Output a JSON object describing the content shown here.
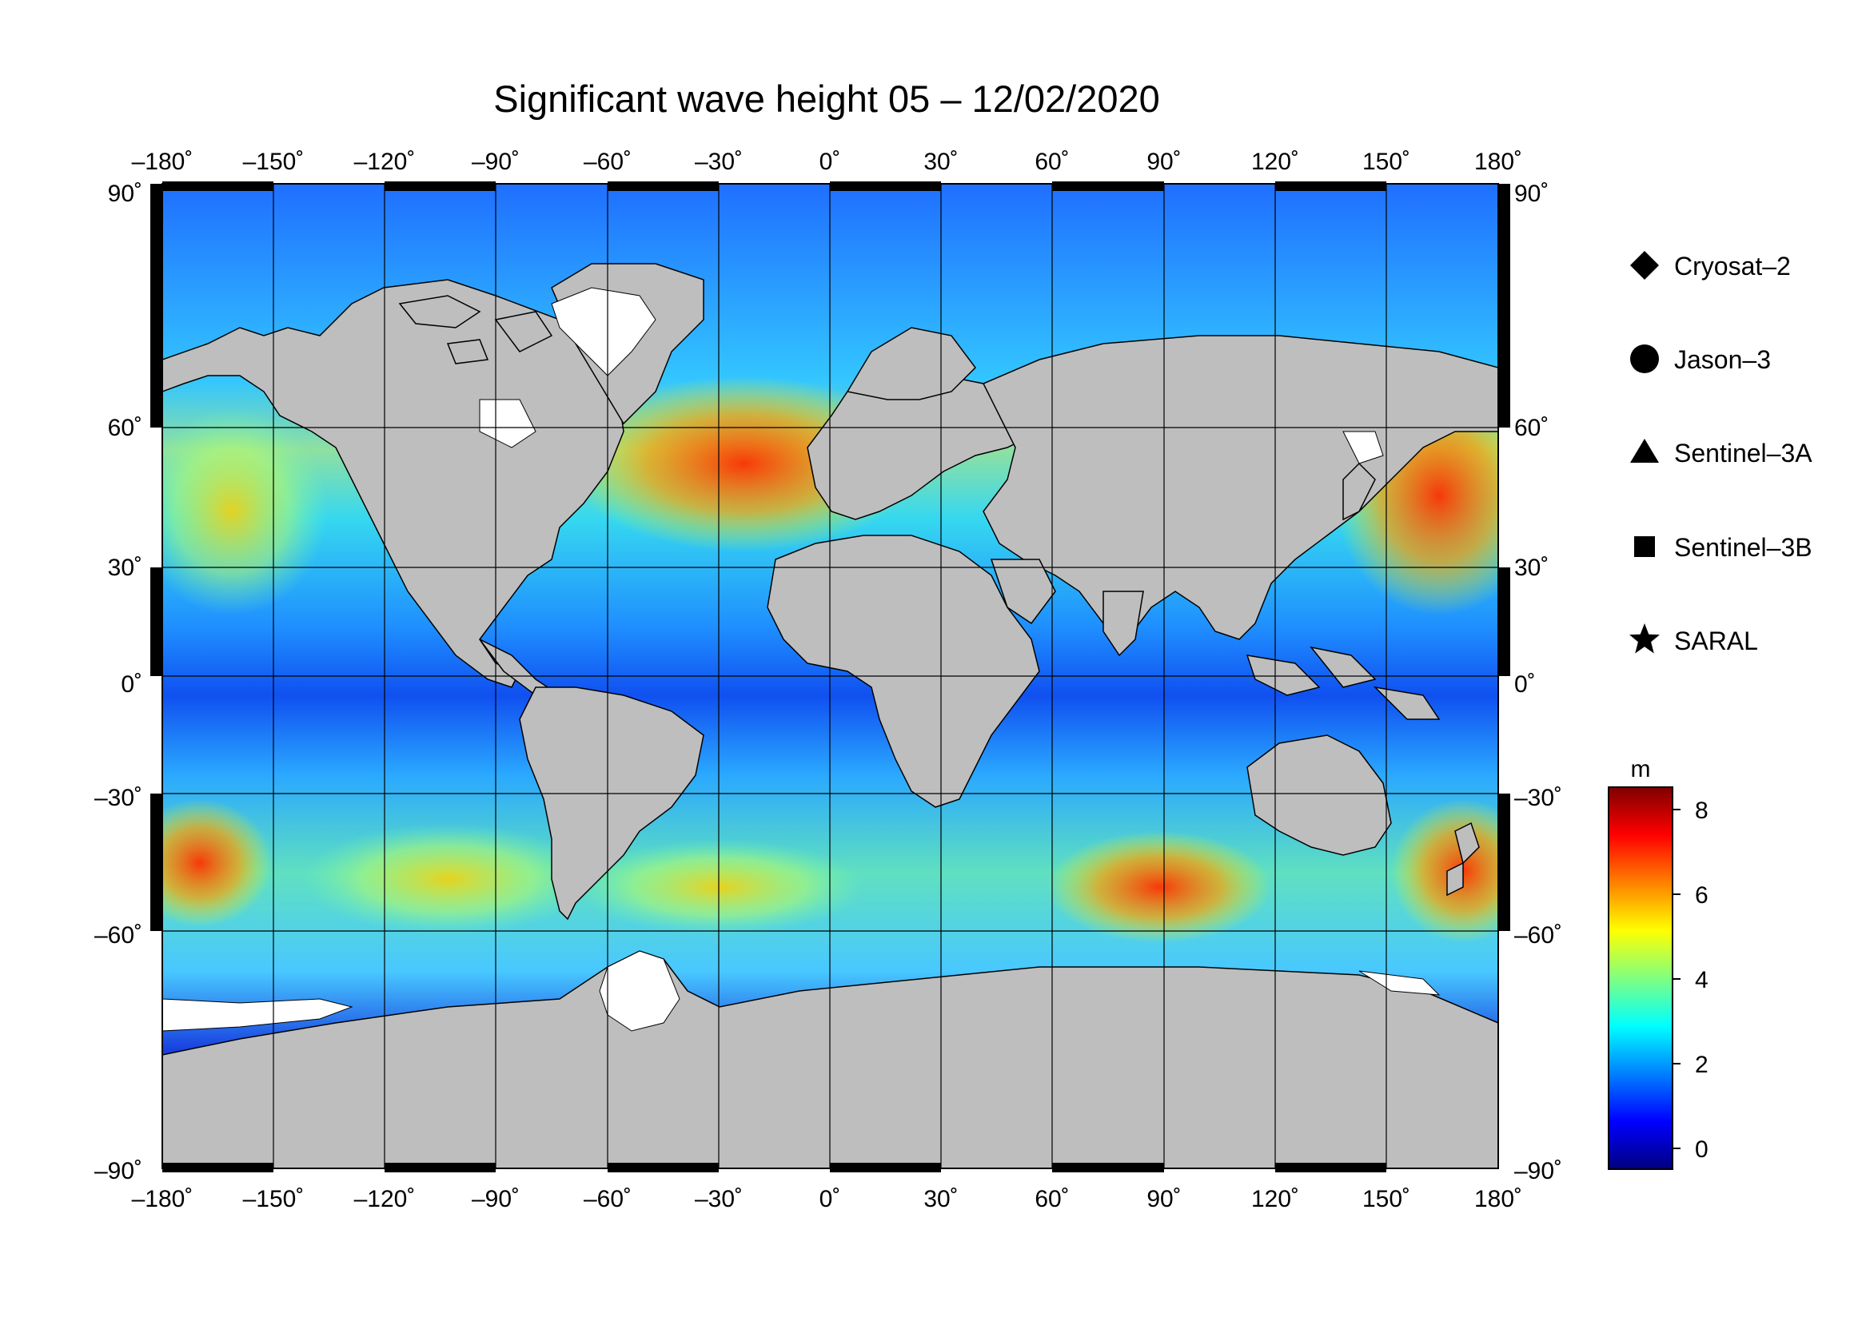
{
  "title": "Significant wave height 05 – 12/02/2020",
  "axes": {
    "lon_labels": [
      "–180˚",
      "–150˚",
      "–120˚",
      "–90˚",
      "–60˚",
      "–30˚",
      "0˚",
      "30˚",
      "60˚",
      "90˚",
      "120˚",
      "150˚",
      "180˚"
    ],
    "lat_labels": [
      "90˚",
      "60˚",
      "30˚",
      "0˚",
      "–30˚",
      "–60˚",
      "–90˚"
    ],
    "lon_range": [
      -180,
      180
    ],
    "lat_range": [
      -90,
      90
    ],
    "grid_step_deg": 30
  },
  "legend": {
    "items": [
      {
        "label": "Cryosat–2",
        "icon": "diamond"
      },
      {
        "label": "Jason–3",
        "icon": "circle"
      },
      {
        "label": "Sentinel–3A",
        "icon": "triangle"
      },
      {
        "label": "Sentinel–3B",
        "icon": "square"
      },
      {
        "label": "SARAL",
        "icon": "star"
      }
    ]
  },
  "colorbar": {
    "unit": "m",
    "ticks": [
      "8",
      "6",
      "4",
      "2",
      "0"
    ],
    "tick_values": [
      8,
      6,
      4,
      2,
      0
    ],
    "range": [
      -0.5,
      8.5
    ],
    "stops": [
      "#00007f",
      "#0000ff",
      "#0080ff",
      "#00ffff",
      "#80ff80",
      "#ffff00",
      "#ff8000",
      "#ff0000",
      "#7f0000"
    ]
  },
  "colors": {
    "land": "#bebebe",
    "ice": "#ffffff",
    "grid": "#000000"
  }
}
